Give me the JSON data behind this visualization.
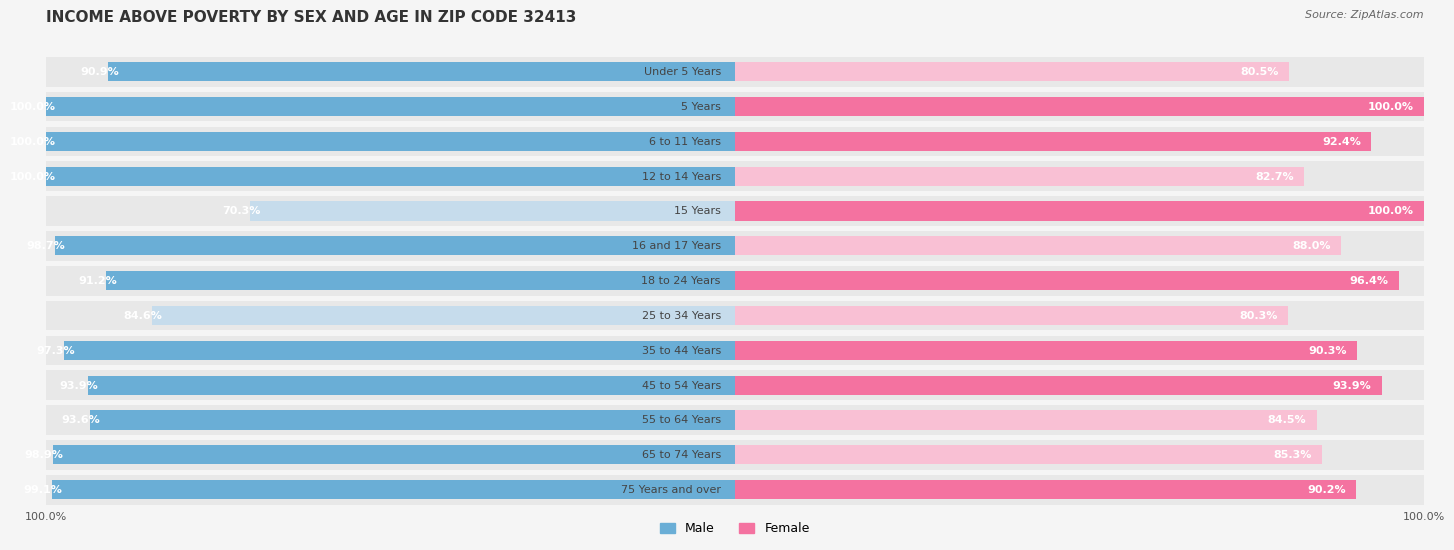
{
  "title": "INCOME ABOVE POVERTY BY SEX AND AGE IN ZIP CODE 32413",
  "source": "Source: ZipAtlas.com",
  "categories": [
    "Under 5 Years",
    "5 Years",
    "6 to 11 Years",
    "12 to 14 Years",
    "15 Years",
    "16 and 17 Years",
    "18 to 24 Years",
    "25 to 34 Years",
    "35 to 44 Years",
    "45 to 54 Years",
    "55 to 64 Years",
    "65 to 74 Years",
    "75 Years and over"
  ],
  "male_values": [
    90.9,
    100.0,
    100.0,
    100.0,
    70.3,
    98.7,
    91.2,
    84.6,
    97.3,
    93.9,
    93.6,
    98.9,
    99.1
  ],
  "female_values": [
    80.5,
    100.0,
    92.4,
    82.7,
    100.0,
    88.0,
    96.4,
    80.3,
    90.3,
    93.9,
    84.5,
    85.3,
    90.2
  ],
  "male_color_strong": "#6aaed6",
  "male_color_light": "#c6dcec",
  "female_color_strong": "#f472a0",
  "female_color_light": "#f9c0d4",
  "male_label": "Male",
  "female_label": "Female",
  "background_color": "#f5f5f5",
  "row_bg_color": "#e8e8e8",
  "title_fontsize": 11,
  "label_fontsize": 8,
  "tick_fontsize": 8,
  "source_fontsize": 8
}
